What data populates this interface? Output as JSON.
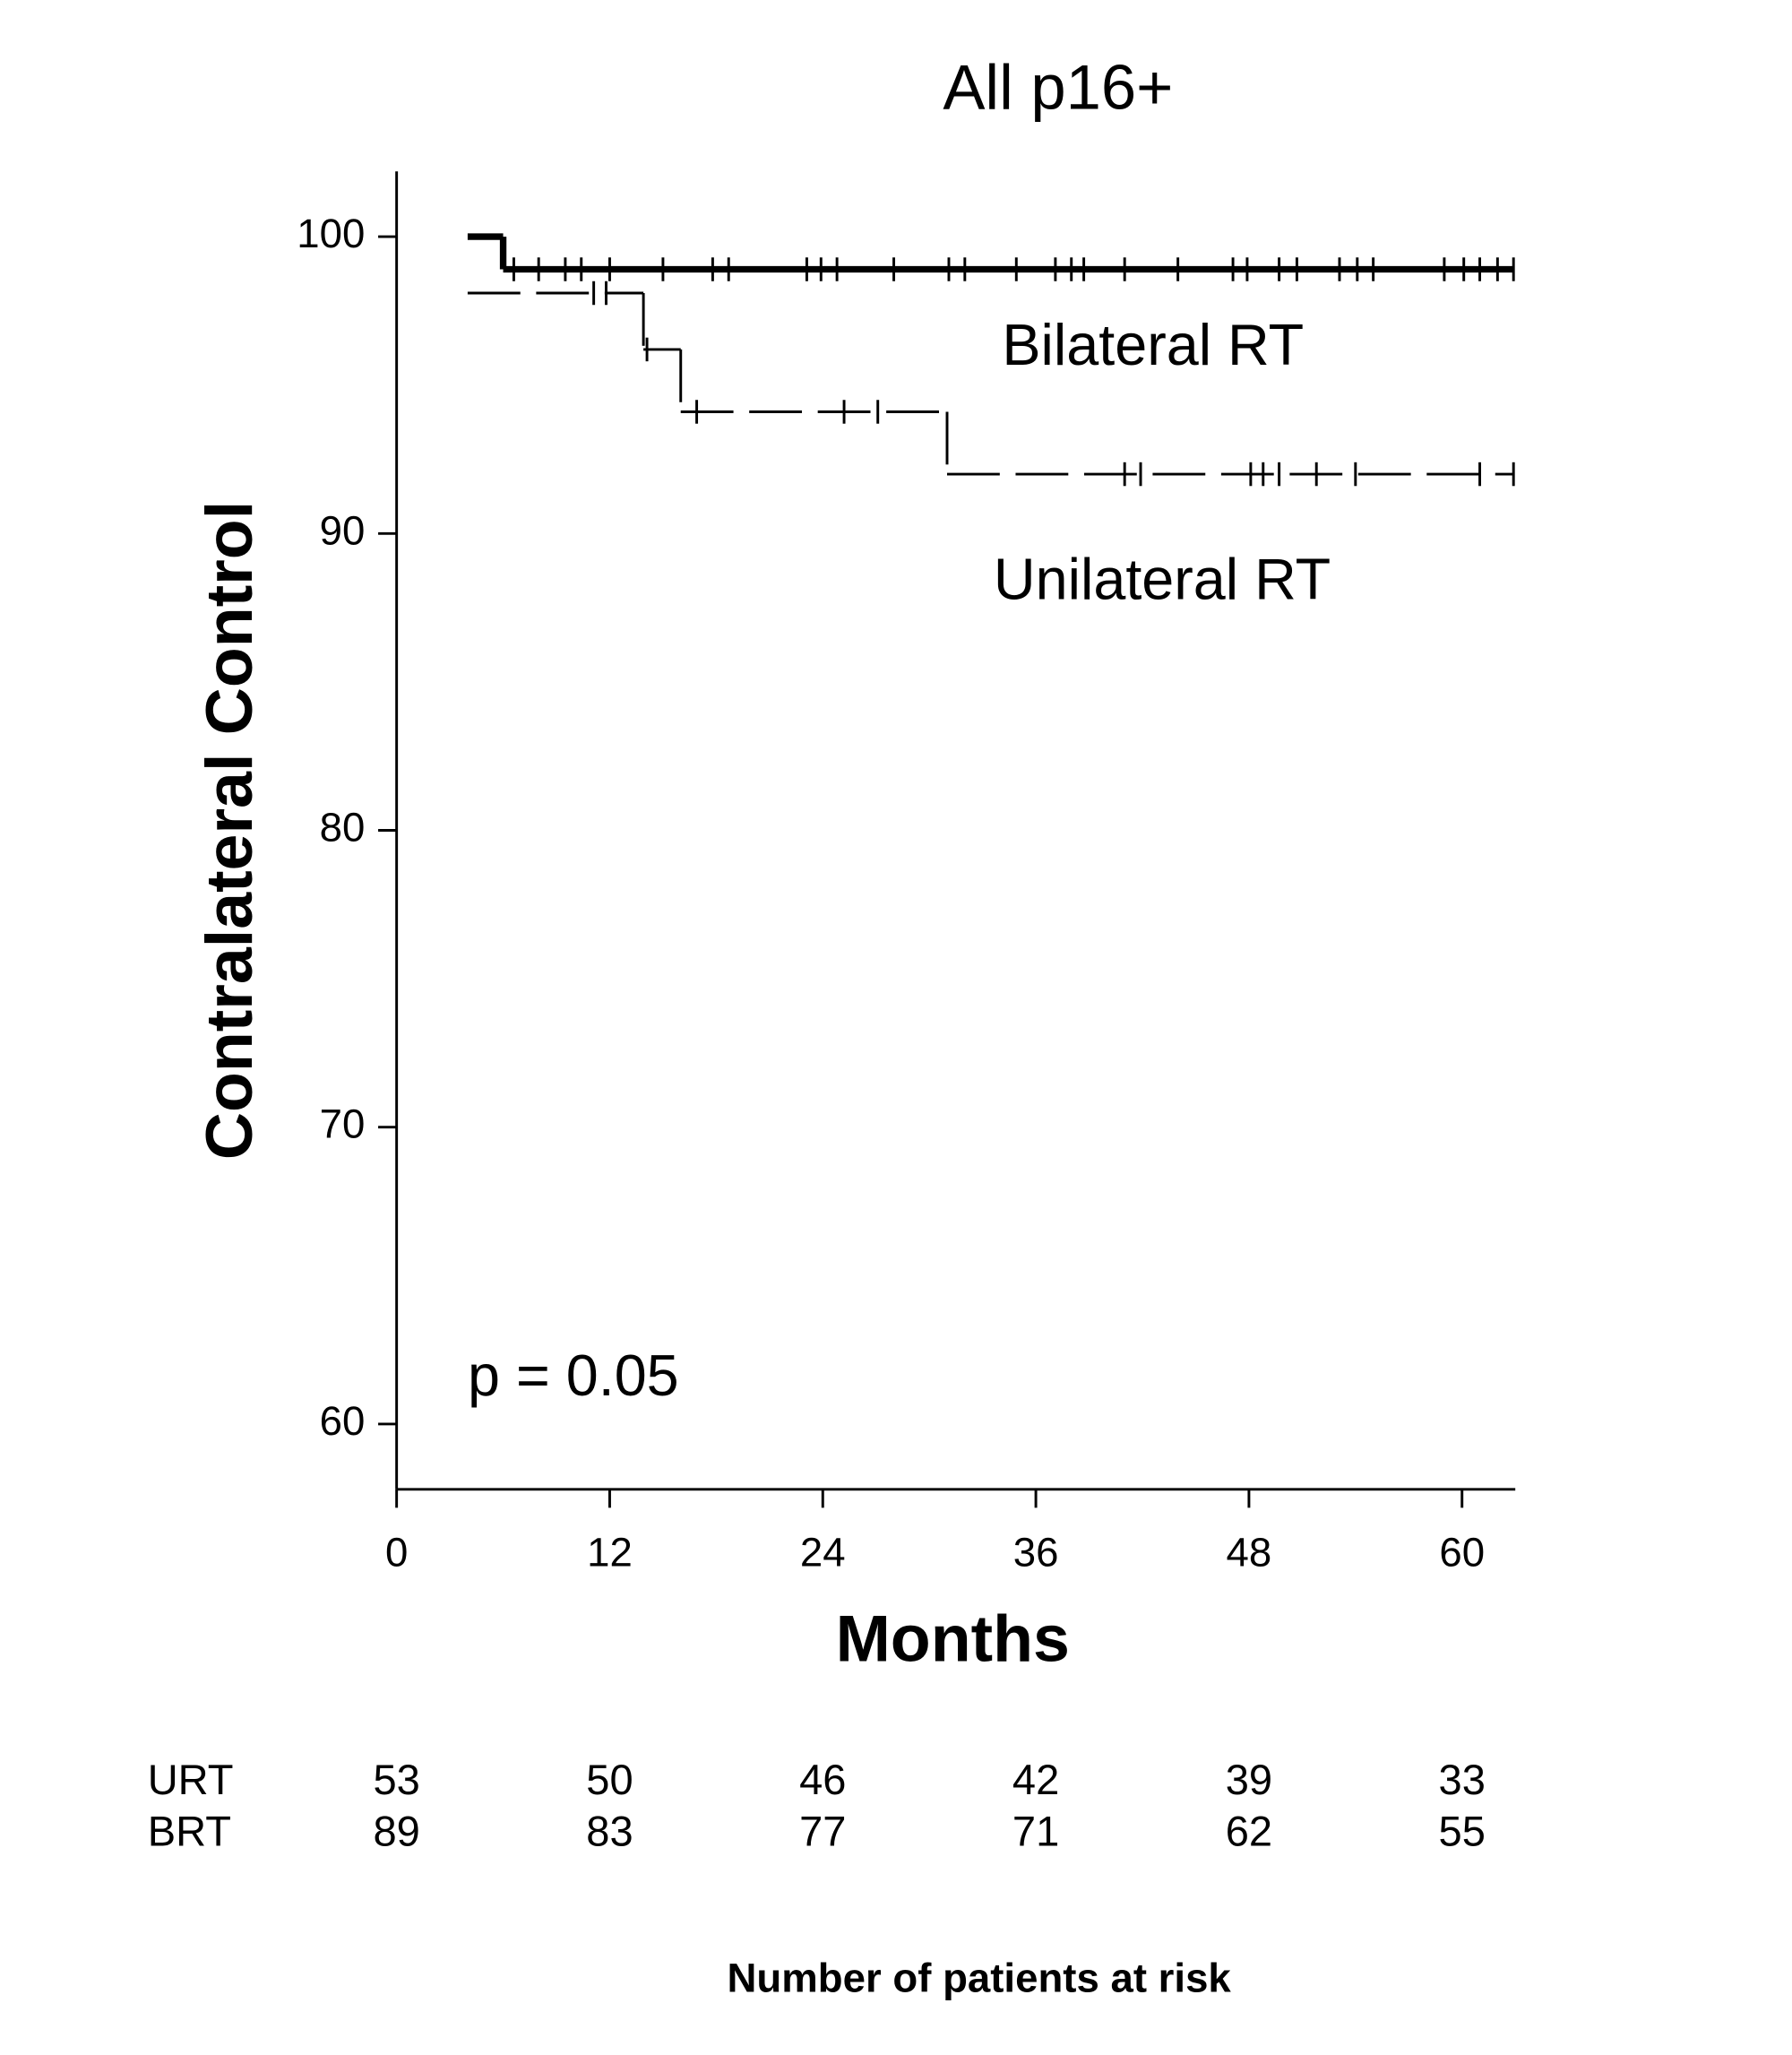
{
  "chart_data": {
    "type": "step",
    "title": "All p16+",
    "x_label": "Months",
    "y_label": "Contralateral Control",
    "xlim": [
      0,
      63
    ],
    "ylim": [
      57.8,
      102.2
    ],
    "xticks": [
      0,
      12,
      24,
      36,
      48,
      60
    ],
    "yticks": [
      60,
      70,
      80,
      90,
      100
    ],
    "annotation": "p = 0.05",
    "series": [
      {
        "name": "Bilateral RT",
        "color": "#000000",
        "line": "solid",
        "x": [
          4,
          6,
          62.9
        ],
        "values": [
          100,
          98.9,
          98.9
        ],
        "censored_x": [
          6.6,
          8.0,
          9.5,
          10.4,
          12.0,
          15.0,
          17.8,
          18.7,
          23.1,
          23.9,
          24.8,
          28.0,
          31.1,
          32.0,
          34.9,
          37.1,
          38.0,
          38.7,
          41.0,
          44.0,
          47.1,
          47.9,
          49.7,
          50.7,
          53.1,
          54.1,
          55.0,
          59.0,
          60.1,
          61.0,
          62.0,
          62.9
        ]
      },
      {
        "name": "Unilateral RT",
        "color": "#000000",
        "line": "dashed",
        "x": [
          4,
          13.9,
          16,
          31,
          62.9
        ],
        "values": [
          98.1,
          96.2,
          94.1,
          92.0,
          92.0
        ],
        "censored_x": [
          11.1,
          11.8,
          14.1,
          16.9,
          25.2,
          27.1,
          41.0,
          41.9,
          48.1,
          48.8,
          49.7,
          51.8,
          54.0,
          61.0,
          62.9
        ]
      }
    ],
    "risk_table": {
      "title": "Number of patients at risk",
      "rows": [
        {
          "label": "URT",
          "values": [
            53,
            50,
            46,
            42,
            39,
            33
          ]
        },
        {
          "label": "BRT",
          "values": [
            89,
            83,
            77,
            71,
            62,
            55
          ]
        }
      ]
    }
  }
}
